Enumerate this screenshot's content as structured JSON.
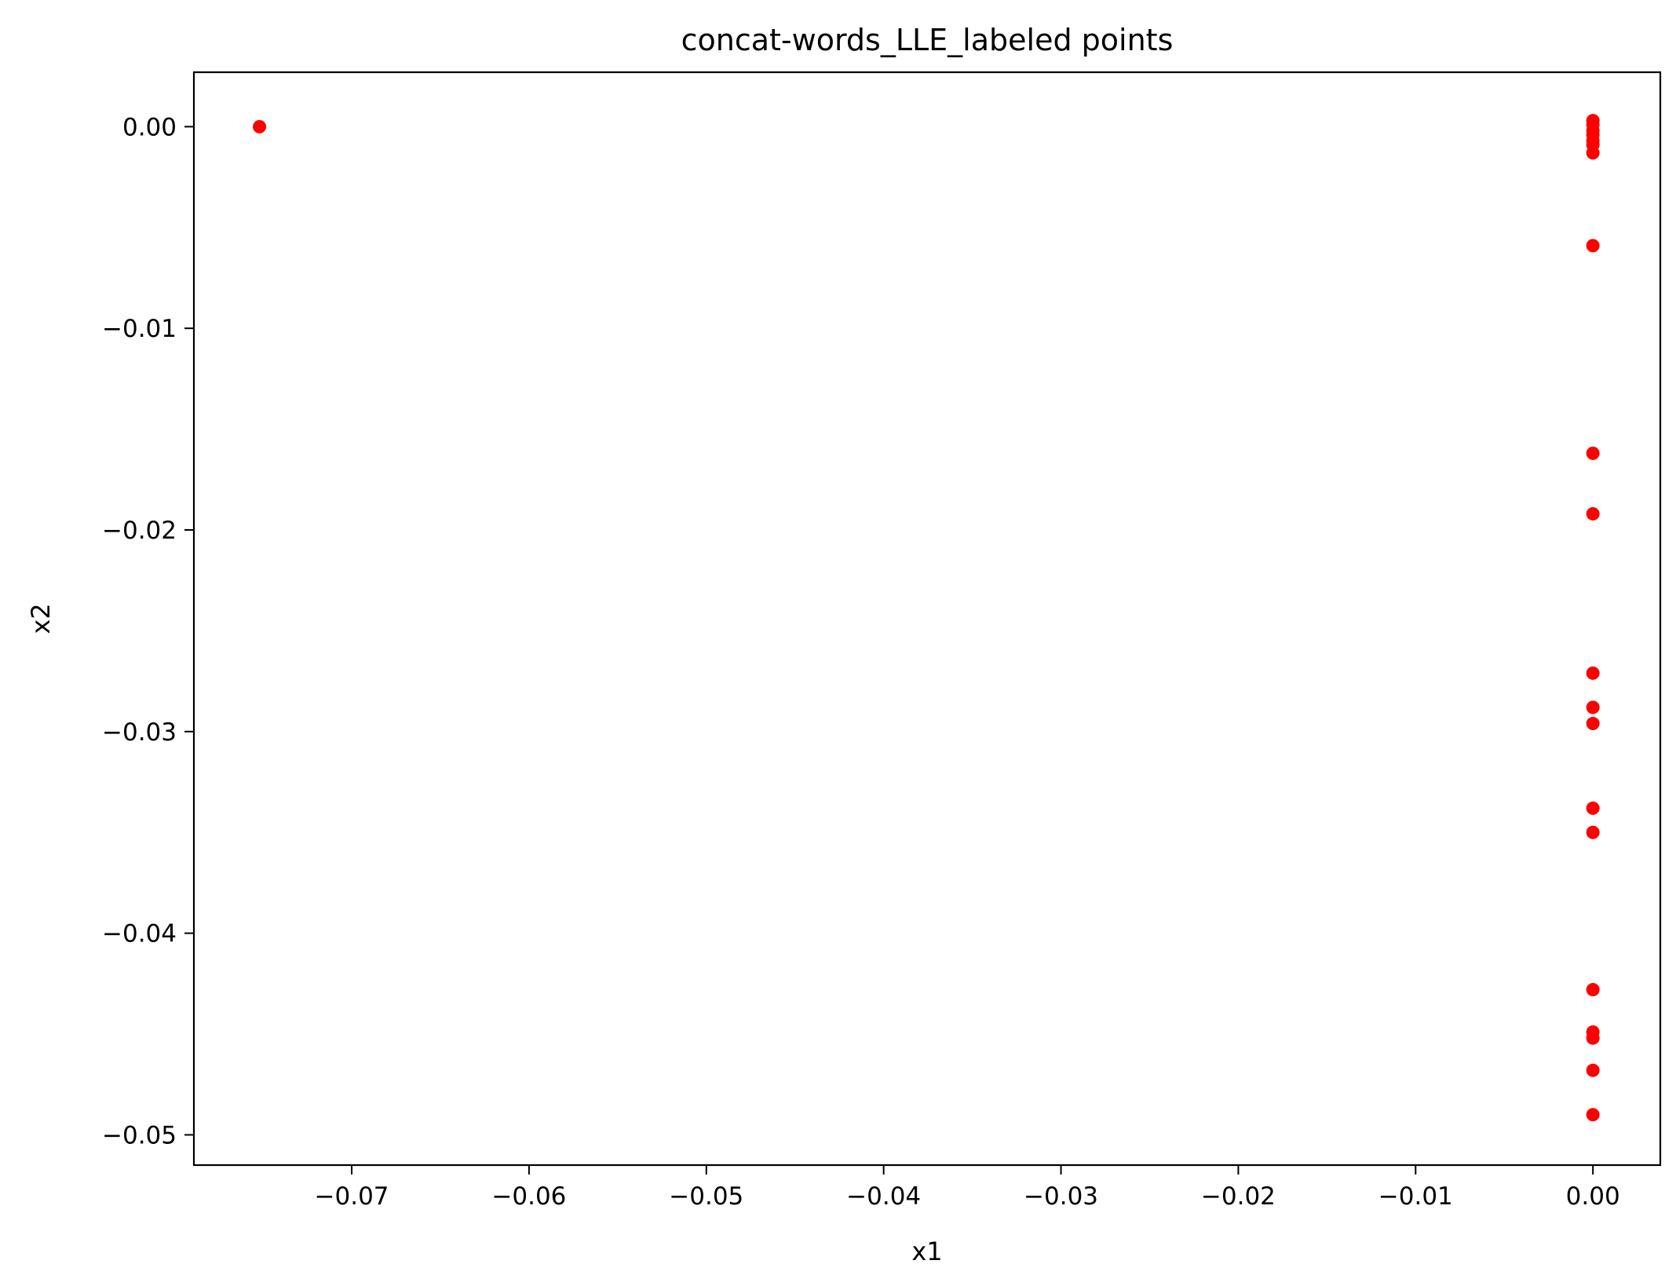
{
  "chart_data": {
    "type": "scatter",
    "title": "concat-words_LLE_labeled points",
    "xlabel": "x1",
    "ylabel": "x2",
    "xlim": [
      -0.0789,
      0.0038
    ],
    "ylim": [
      -0.0515,
      0.0027
    ],
    "xticks": [
      -0.07,
      -0.06,
      -0.05,
      -0.04,
      -0.03,
      -0.02,
      -0.01,
      0.0
    ],
    "xtick_labels": [
      "−0.07",
      "−0.06",
      "−0.05",
      "−0.04",
      "−0.03",
      "−0.02",
      "−0.01",
      "0.00"
    ],
    "yticks": [
      0.0,
      -0.01,
      -0.02,
      -0.03,
      -0.04,
      -0.05
    ],
    "ytick_labels": [
      "0.00",
      "−0.01",
      "−0.02",
      "−0.03",
      "−0.04",
      "−0.05"
    ],
    "grid": false,
    "marker_color": "#ff0000",
    "points": [
      {
        "x": -0.0752,
        "y": 0.0
      },
      {
        "x": 0.0,
        "y": 0.0003
      },
      {
        "x": 0.0,
        "y": 0.0001
      },
      {
        "x": 0.0,
        "y": -0.0002
      },
      {
        "x": 0.0,
        "y": -0.0004
      },
      {
        "x": 0.0,
        "y": -0.0007
      },
      {
        "x": 0.0,
        "y": -0.0009
      },
      {
        "x": 0.0,
        "y": -0.0013
      },
      {
        "x": 0.0,
        "y": -0.0059
      },
      {
        "x": 0.0,
        "y": -0.0162
      },
      {
        "x": 0.0,
        "y": -0.0192
      },
      {
        "x": 0.0,
        "y": -0.0271
      },
      {
        "x": 0.0,
        "y": -0.0288
      },
      {
        "x": 0.0,
        "y": -0.0296
      },
      {
        "x": 0.0,
        "y": -0.0338
      },
      {
        "x": 0.0,
        "y": -0.035
      },
      {
        "x": 0.0,
        "y": -0.0428
      },
      {
        "x": 0.0,
        "y": -0.0449
      },
      {
        "x": 0.0,
        "y": -0.0452
      },
      {
        "x": 0.0,
        "y": -0.0468
      },
      {
        "x": 0.0,
        "y": -0.049
      }
    ]
  }
}
